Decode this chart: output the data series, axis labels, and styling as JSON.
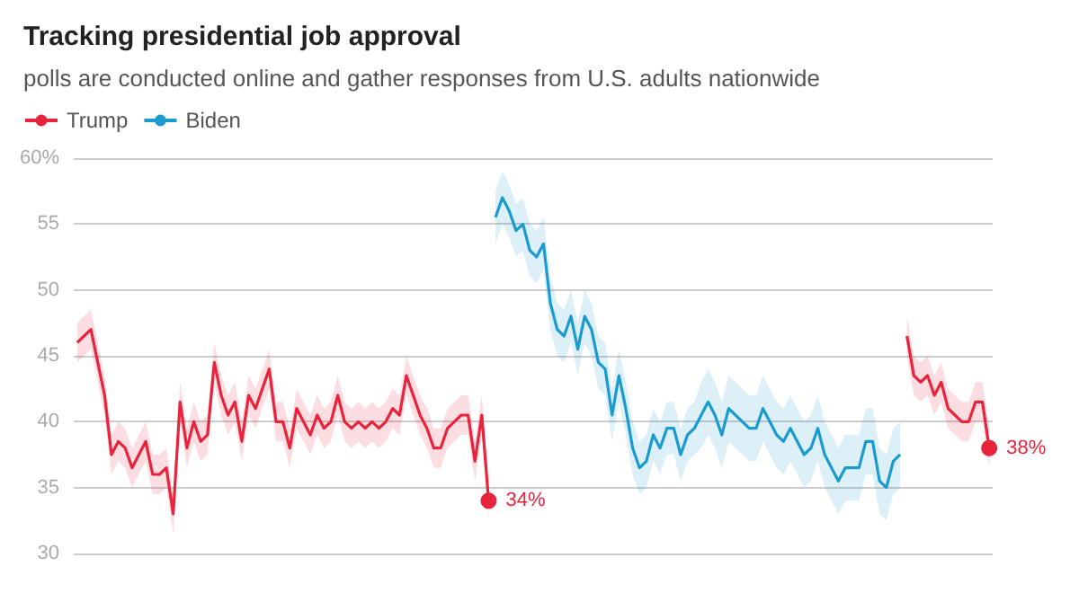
{
  "chart_data": {
    "type": "line",
    "title": "Tracking presidential job approval",
    "subtitle": "polls are conducted online and gather responses from U.S. adults nationwide",
    "categories": [
      null,
      null,
      null,
      null,
      null,
      null,
      null,
      null,
      null,
      null,
      null,
      null,
      null,
      null,
      null,
      null,
      null,
      null,
      null,
      null,
      null,
      null,
      null,
      null,
      null,
      null,
      null,
      null,
      null,
      null,
      null,
      null,
      null,
      null,
      null,
      null,
      null,
      null,
      null,
      null,
      null,
      null,
      null,
      null,
      null,
      null,
      null,
      null,
      null,
      null,
      null,
      null,
      null,
      null,
      null,
      null,
      null,
      null,
      null,
      null,
      null,
      null,
      null,
      null,
      null,
      null,
      null,
      null,
      null,
      null,
      null,
      null,
      null,
      null,
      null,
      null,
      null,
      null,
      null,
      null,
      null,
      null,
      null,
      null,
      null,
      null,
      null,
      null,
      null,
      null,
      null,
      null,
      null,
      null,
      null,
      null,
      null,
      null,
      null,
      null,
      null,
      null,
      null,
      null,
      null,
      null,
      null,
      null,
      null,
      null,
      null,
      null,
      null,
      null,
      null,
      null,
      null,
      null,
      null,
      null,
      null,
      null,
      null,
      null,
      null,
      null,
      null,
      null,
      null,
      null,
      null,
      null,
      null,
      null
    ],
    "ylim": [
      30,
      60
    ],
    "yticks": [
      30,
      35,
      40,
      45,
      50,
      55,
      {
        "value": 60,
        "label": "60%"
      }
    ],
    "grid": "y",
    "legend": "top left",
    "line_style": "solid",
    "series": [
      {
        "name": "Trump",
        "color": "#e8243c",
        "values": [
          46,
          46.5,
          47,
          44.5,
          42,
          37.5,
          38.5,
          38,
          36.5,
          37.5,
          38.5,
          36,
          36,
          36.5,
          33,
          41.5,
          38,
          40,
          38.5,
          39,
          44.5,
          42,
          40.5,
          41.5,
          38.5,
          42,
          41,
          42.5,
          44,
          40,
          40,
          38,
          41,
          40,
          39,
          40.5,
          39.5,
          40,
          42,
          40,
          39.5,
          40,
          39.5,
          40,
          39.5,
          40,
          41,
          40.5,
          43.5,
          42,
          40.5,
          39.5,
          38,
          38,
          39.5,
          40,
          40.5,
          40.5,
          37,
          40.5,
          34,
          null,
          null,
          null,
          null,
          null,
          null,
          null,
          null,
          null,
          null,
          null,
          null,
          null,
          null,
          null,
          null,
          null,
          null,
          null,
          null,
          null,
          null,
          null,
          null,
          null,
          null,
          null,
          null,
          null,
          null,
          null,
          null,
          null,
          null,
          null,
          null,
          null,
          null,
          null,
          null,
          null,
          null,
          null,
          null,
          null,
          null,
          null,
          null,
          null,
          null,
          null,
          null,
          null,
          null,
          null,
          null,
          null,
          null,
          null,
          null,
          46.5,
          43.5,
          43,
          43.5,
          42,
          43,
          41,
          40.5,
          40,
          40,
          41.5,
          41.5,
          38
        ],
        "lower": [
          44.5,
          45,
          45.5,
          43,
          40.5,
          36,
          37,
          36.5,
          35,
          36,
          37,
          34.5,
          34.5,
          35,
          31.5,
          40,
          36.5,
          38.5,
          37,
          37.5,
          43,
          40.5,
          39,
          40,
          37,
          40.5,
          39.5,
          41,
          42.5,
          38.5,
          38.5,
          36.5,
          39.5,
          38.5,
          37.5,
          39,
          38,
          38.5,
          40.5,
          38.5,
          38,
          38.5,
          38,
          38.5,
          38,
          38.5,
          39.5,
          39,
          42,
          40.5,
          39,
          38,
          36.5,
          36.5,
          38,
          38.5,
          39,
          39,
          35.5,
          39,
          32.5,
          null,
          null,
          null,
          null,
          null,
          null,
          null,
          null,
          null,
          null,
          null,
          null,
          null,
          null,
          null,
          null,
          null,
          null,
          null,
          null,
          null,
          null,
          null,
          null,
          null,
          null,
          null,
          null,
          null,
          null,
          null,
          null,
          null,
          null,
          null,
          null,
          null,
          null,
          null,
          null,
          null,
          null,
          null,
          null,
          null,
          null,
          null,
          null,
          null,
          null,
          null,
          null,
          null,
          null,
          null,
          null,
          null,
          null,
          null,
          null,
          45,
          42,
          41.5,
          42,
          40.5,
          41.5,
          39.5,
          39,
          38.5,
          38.5,
          40,
          40,
          36.5
        ],
        "upper": [
          47.5,
          48,
          48.5,
          46,
          43.5,
          39,
          40,
          39.5,
          38,
          39,
          40,
          37.5,
          37.5,
          38,
          34.5,
          43,
          39.5,
          41.5,
          40,
          40.5,
          46,
          43.5,
          42,
          43,
          40,
          43.5,
          42.5,
          44,
          45.5,
          41.5,
          41.5,
          39.5,
          42.5,
          41.5,
          40.5,
          42,
          41,
          41.5,
          43.5,
          41.5,
          41,
          41.5,
          41,
          41.5,
          41,
          41.5,
          42.5,
          42,
          45,
          43.5,
          42,
          41,
          39.5,
          39.5,
          41,
          41.5,
          42,
          42,
          38.5,
          42,
          35.5,
          null,
          null,
          null,
          null,
          null,
          null,
          null,
          null,
          null,
          null,
          null,
          null,
          null,
          null,
          null,
          null,
          null,
          null,
          null,
          null,
          null,
          null,
          null,
          null,
          null,
          null,
          null,
          null,
          null,
          null,
          null,
          null,
          null,
          null,
          null,
          null,
          null,
          null,
          null,
          null,
          null,
          null,
          null,
          null,
          null,
          null,
          null,
          null,
          null,
          null,
          null,
          null,
          null,
          null,
          null,
          null,
          null,
          null,
          null,
          null,
          48,
          45,
          44.5,
          45,
          43.5,
          44.5,
          42.5,
          42,
          41.5,
          41.5,
          43,
          43,
          39.5
        ],
        "value_labels": [
          null,
          null,
          null,
          null,
          null,
          null,
          null,
          null,
          null,
          null,
          null,
          null,
          null,
          null,
          null,
          null,
          null,
          null,
          null,
          null,
          null,
          null,
          null,
          null,
          null,
          null,
          null,
          null,
          null,
          null,
          null,
          null,
          null,
          null,
          null,
          null,
          null,
          null,
          null,
          null,
          null,
          null,
          null,
          null,
          null,
          null,
          null,
          null,
          null,
          null,
          null,
          null,
          null,
          null,
          null,
          null,
          null,
          null,
          null,
          null,
          "34%",
          null,
          null,
          null,
          null,
          null,
          null,
          null,
          null,
          null,
          null,
          null,
          null,
          null,
          null,
          null,
          null,
          null,
          null,
          null,
          null,
          null,
          null,
          null,
          null,
          null,
          null,
          null,
          null,
          null,
          null,
          null,
          null,
          null,
          null,
          null,
          null,
          null,
          null,
          null,
          null,
          null,
          null,
          null,
          null,
          null,
          null,
          null,
          null,
          null,
          null,
          null,
          null,
          null,
          null,
          null,
          null,
          null,
          null,
          null,
          null,
          null,
          null,
          null,
          null,
          null,
          null,
          null,
          null,
          null,
          null,
          null,
          null,
          "38%"
        ]
      },
      {
        "name": "Biden",
        "color": "#1a9bd0",
        "values": [
          null,
          null,
          null,
          null,
          null,
          null,
          null,
          null,
          null,
          null,
          null,
          null,
          null,
          null,
          null,
          null,
          null,
          null,
          null,
          null,
          null,
          null,
          null,
          null,
          null,
          null,
          null,
          null,
          null,
          null,
          null,
          null,
          null,
          null,
          null,
          null,
          null,
          null,
          null,
          null,
          null,
          null,
          null,
          null,
          null,
          null,
          null,
          null,
          null,
          null,
          null,
          null,
          null,
          null,
          null,
          null,
          null,
          null,
          null,
          null,
          null,
          55.5,
          57,
          56,
          54.5,
          55,
          53,
          52.5,
          53.5,
          49,
          47,
          46.5,
          48,
          45.5,
          48,
          47,
          44.5,
          44,
          40.5,
          43.5,
          41,
          38,
          36.5,
          37,
          39,
          38,
          39.5,
          39.5,
          37.5,
          39,
          39.5,
          40.5,
          41.5,
          40.5,
          39,
          41,
          40.5,
          40,
          39.5,
          39.5,
          41,
          40,
          39,
          38.5,
          39.5,
          38.5,
          37.5,
          38,
          39.5,
          37.5,
          36.5,
          35.5,
          36.5,
          36.5,
          36.5,
          38.5,
          38.5,
          35.5,
          35,
          37,
          37.5,
          null,
          null,
          null,
          null,
          null,
          null,
          null,
          null,
          null,
          null,
          null,
          null,
          null
        ],
        "lower": [
          null,
          null,
          null,
          null,
          null,
          null,
          null,
          null,
          null,
          null,
          null,
          null,
          null,
          null,
          null,
          null,
          null,
          null,
          null,
          null,
          null,
          null,
          null,
          null,
          null,
          null,
          null,
          null,
          null,
          null,
          null,
          null,
          null,
          null,
          null,
          null,
          null,
          null,
          null,
          null,
          null,
          null,
          null,
          null,
          null,
          null,
          null,
          null,
          null,
          null,
          null,
          null,
          null,
          null,
          null,
          null,
          null,
          null,
          null,
          null,
          null,
          53.5,
          55,
          54,
          52.5,
          53,
          51,
          50.5,
          51.5,
          47,
          45,
          44.5,
          46,
          43.5,
          46,
          45,
          42.5,
          42,
          38.5,
          41.5,
          39,
          36,
          34.5,
          35,
          37,
          36,
          37.5,
          37.5,
          35.5,
          37,
          37.5,
          38,
          39,
          38,
          36.5,
          38.5,
          38,
          37.5,
          37,
          37,
          38.5,
          37.5,
          36.5,
          36,
          37,
          36,
          35,
          35.5,
          37,
          35,
          34,
          33,
          34,
          34,
          34,
          36,
          36,
          33,
          32.5,
          34.5,
          35,
          null,
          null,
          null,
          null,
          null,
          null,
          null,
          null,
          null,
          null,
          null,
          null,
          null
        ],
        "upper": [
          null,
          null,
          null,
          null,
          null,
          null,
          null,
          null,
          null,
          null,
          null,
          null,
          null,
          null,
          null,
          null,
          null,
          null,
          null,
          null,
          null,
          null,
          null,
          null,
          null,
          null,
          null,
          null,
          null,
          null,
          null,
          null,
          null,
          null,
          null,
          null,
          null,
          null,
          null,
          null,
          null,
          null,
          null,
          null,
          null,
          null,
          null,
          null,
          null,
          null,
          null,
          null,
          null,
          null,
          null,
          null,
          null,
          null,
          null,
          null,
          null,
          57.5,
          59,
          58,
          56.5,
          57,
          55,
          54.5,
          55.5,
          51,
          49,
          48.5,
          50,
          47.5,
          50,
          49,
          46.5,
          46,
          42.5,
          45.5,
          43,
          40,
          38.5,
          39,
          41,
          40,
          41.5,
          41.5,
          39.5,
          41,
          41.5,
          43,
          44,
          43,
          41.5,
          43.5,
          43,
          42.5,
          42,
          42,
          43.5,
          42.5,
          41.5,
          41,
          42,
          41,
          40,
          40.5,
          42,
          40,
          39,
          38,
          39,
          39,
          39,
          41,
          41,
          38,
          37.5,
          39.5,
          40,
          null,
          null,
          null,
          null,
          null,
          null,
          null,
          null,
          null,
          null,
          null,
          null,
          null
        ]
      }
    ]
  }
}
